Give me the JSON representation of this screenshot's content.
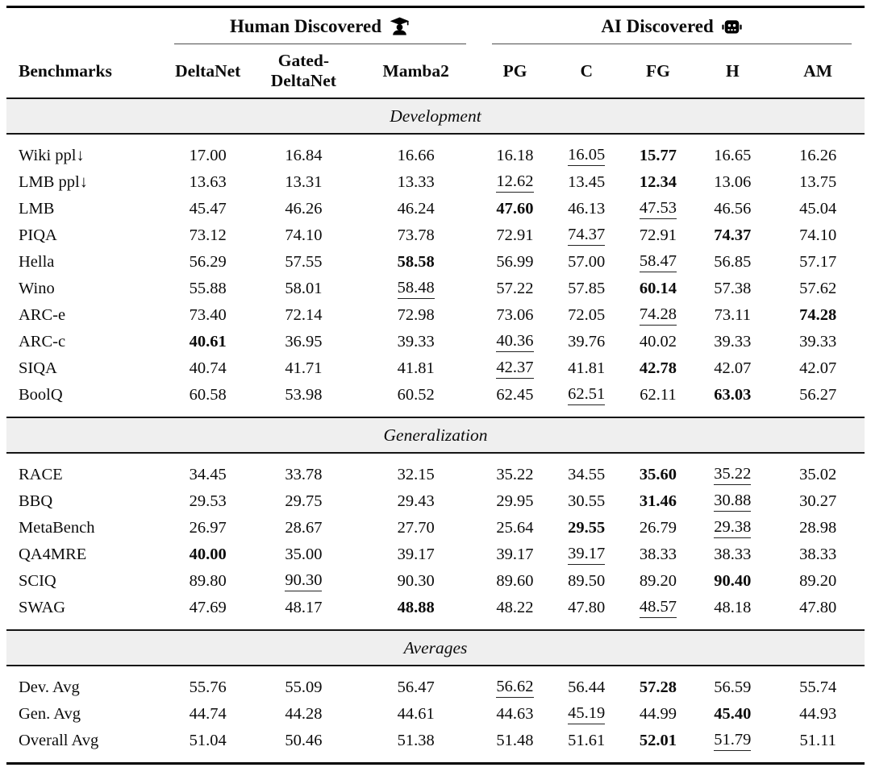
{
  "header": {
    "benchmarks_label": "Benchmarks",
    "groups": [
      {
        "label": "Human Discovered",
        "icon": "person-graduate-icon",
        "span": 3
      },
      {
        "label": "AI Discovered",
        "icon": "robot-icon",
        "span": 5
      }
    ],
    "columns": [
      "DeltaNet",
      "Gated-DeltaNet",
      "Mamba2",
      "PG",
      "C",
      "FG",
      "H",
      "AM"
    ]
  },
  "style_legend": {
    "b": "bold (best)",
    "u": "underline (second best)",
    "": "plain"
  },
  "sections": [
    {
      "title": "Development",
      "rows": [
        {
          "benchmark": "Wiki ppl↓",
          "values": [
            "17.00",
            "16.84",
            "16.66",
            "16.18",
            "16.05",
            "15.77",
            "16.65",
            "16.26"
          ],
          "styles": [
            "",
            "",
            "",
            "",
            "u",
            "b",
            "",
            ""
          ]
        },
        {
          "benchmark": "LMB ppl↓",
          "values": [
            "13.63",
            "13.31",
            "13.33",
            "12.62",
            "13.45",
            "12.34",
            "13.06",
            "13.75"
          ],
          "styles": [
            "",
            "",
            "",
            "u",
            "",
            "b",
            "",
            ""
          ]
        },
        {
          "benchmark": "LMB",
          "values": [
            "45.47",
            "46.26",
            "46.24",
            "47.60",
            "46.13",
            "47.53",
            "46.56",
            "45.04"
          ],
          "styles": [
            "",
            "",
            "",
            "b",
            "",
            "u",
            "",
            ""
          ]
        },
        {
          "benchmark": "PIQA",
          "values": [
            "73.12",
            "74.10",
            "73.78",
            "72.91",
            "74.37",
            "72.91",
            "74.37",
            "74.10"
          ],
          "styles": [
            "",
            "",
            "",
            "",
            "u",
            "",
            "b",
            ""
          ]
        },
        {
          "benchmark": "Hella",
          "values": [
            "56.29",
            "57.55",
            "58.58",
            "56.99",
            "57.00",
            "58.47",
            "56.85",
            "57.17"
          ],
          "styles": [
            "",
            "",
            "b",
            "",
            "",
            "u",
            "",
            ""
          ]
        },
        {
          "benchmark": "Wino",
          "values": [
            "55.88",
            "58.01",
            "58.48",
            "57.22",
            "57.85",
            "60.14",
            "57.38",
            "57.62"
          ],
          "styles": [
            "",
            "",
            "u",
            "",
            "",
            "b",
            "",
            ""
          ]
        },
        {
          "benchmark": "ARC-e",
          "values": [
            "73.40",
            "72.14",
            "72.98",
            "73.06",
            "72.05",
            "74.28",
            "73.11",
            "74.28"
          ],
          "styles": [
            "",
            "",
            "",
            "",
            "",
            "u",
            "",
            "b"
          ]
        },
        {
          "benchmark": "ARC-c",
          "values": [
            "40.61",
            "36.95",
            "39.33",
            "40.36",
            "39.76",
            "40.02",
            "39.33",
            "39.33"
          ],
          "styles": [
            "b",
            "",
            "",
            "u",
            "",
            "",
            "",
            ""
          ]
        },
        {
          "benchmark": "SIQA",
          "values": [
            "40.74",
            "41.71",
            "41.81",
            "42.37",
            "41.81",
            "42.78",
            "42.07",
            "42.07"
          ],
          "styles": [
            "",
            "",
            "",
            "u",
            "",
            "b",
            "",
            ""
          ]
        },
        {
          "benchmark": "BoolQ",
          "values": [
            "60.58",
            "53.98",
            "60.52",
            "62.45",
            "62.51",
            "62.11",
            "63.03",
            "56.27"
          ],
          "styles": [
            "",
            "",
            "",
            "",
            "u",
            "",
            "b",
            ""
          ]
        }
      ]
    },
    {
      "title": "Generalization",
      "rows": [
        {
          "benchmark": "RACE",
          "values": [
            "34.45",
            "33.78",
            "32.15",
            "35.22",
            "34.55",
            "35.60",
            "35.22",
            "35.02"
          ],
          "styles": [
            "",
            "",
            "",
            "",
            "",
            "b",
            "u",
            ""
          ]
        },
        {
          "benchmark": "BBQ",
          "values": [
            "29.53",
            "29.75",
            "29.43",
            "29.95",
            "30.55",
            "31.46",
            "30.88",
            "30.27"
          ],
          "styles": [
            "",
            "",
            "",
            "",
            "",
            "b",
            "u",
            ""
          ]
        },
        {
          "benchmark": "MetaBench",
          "values": [
            "26.97",
            "28.67",
            "27.70",
            "25.64",
            "29.55",
            "26.79",
            "29.38",
            "28.98"
          ],
          "styles": [
            "",
            "",
            "",
            "",
            "b",
            "",
            "u",
            ""
          ]
        },
        {
          "benchmark": "QA4MRE",
          "values": [
            "40.00",
            "35.00",
            "39.17",
            "39.17",
            "39.17",
            "38.33",
            "38.33",
            "38.33"
          ],
          "styles": [
            "b",
            "",
            "",
            "",
            "u",
            "",
            "",
            ""
          ]
        },
        {
          "benchmark": "SCIQ",
          "values": [
            "89.80",
            "90.30",
            "90.30",
            "89.60",
            "89.50",
            "89.20",
            "90.40",
            "89.20"
          ],
          "styles": [
            "",
            "u",
            "",
            "",
            "",
            "",
            "b",
            ""
          ]
        },
        {
          "benchmark": "SWAG",
          "values": [
            "47.69",
            "48.17",
            "48.88",
            "48.22",
            "47.80",
            "48.57",
            "48.18",
            "47.80"
          ],
          "styles": [
            "",
            "",
            "b",
            "",
            "",
            "u",
            "",
            ""
          ]
        }
      ]
    },
    {
      "title": "Averages",
      "rows": [
        {
          "benchmark": "Dev. Avg",
          "values": [
            "55.76",
            "55.09",
            "56.47",
            "56.62",
            "56.44",
            "57.28",
            "56.59",
            "55.74"
          ],
          "styles": [
            "",
            "",
            "",
            "u",
            "",
            "b",
            "",
            ""
          ]
        },
        {
          "benchmark": "Gen. Avg",
          "values": [
            "44.74",
            "44.28",
            "44.61",
            "44.63",
            "45.19",
            "44.99",
            "45.40",
            "44.93"
          ],
          "styles": [
            "",
            "",
            "",
            "",
            "u",
            "",
            "b",
            ""
          ]
        },
        {
          "benchmark": "Overall Avg",
          "values": [
            "51.04",
            "50.46",
            "51.38",
            "51.48",
            "51.61",
            "52.01",
            "51.79",
            "51.11"
          ],
          "styles": [
            "",
            "",
            "",
            "",
            "",
            "b",
            "u",
            ""
          ]
        }
      ]
    }
  ]
}
